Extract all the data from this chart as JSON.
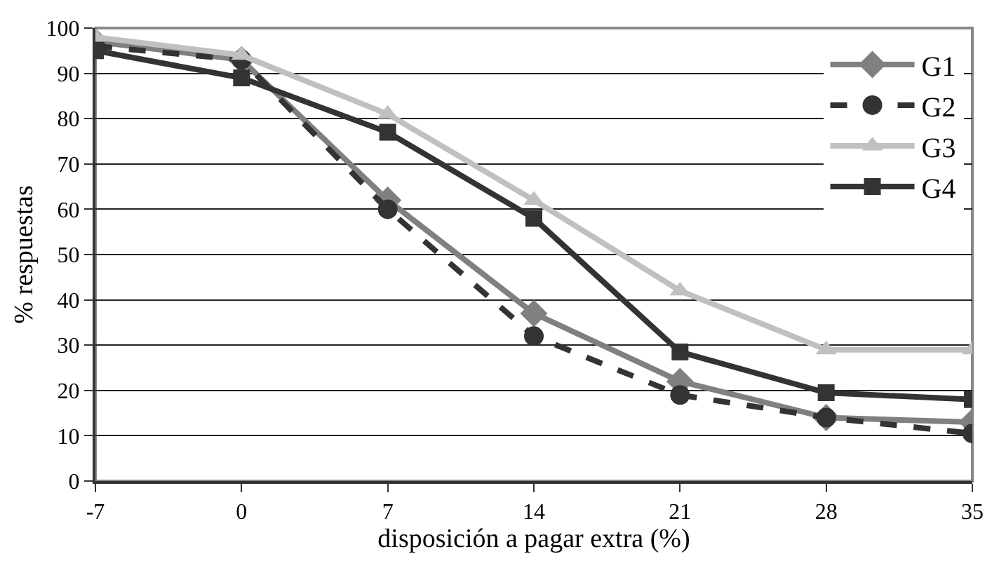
{
  "chart_data": {
    "type": "line",
    "xlabel": "disposición a pagar extra (%)",
    "ylabel": "% respuestas",
    "x": [
      -7,
      0,
      7,
      14,
      21,
      28,
      35
    ],
    "xlim": [
      -7,
      35
    ],
    "xticks": [
      -7,
      0,
      7,
      14,
      21,
      28,
      35
    ],
    "ylim": [
      0,
      100
    ],
    "yticks": [
      0,
      10,
      20,
      30,
      40,
      50,
      60,
      70,
      80,
      90,
      100
    ],
    "grid": "y",
    "legend": "top right",
    "series": [
      {
        "name": "G1",
        "color": "#808080",
        "marker": "diamond",
        "line_style": "solid",
        "values": [
          97,
          93,
          62,
          37,
          22,
          14,
          13
        ]
      },
      {
        "name": "G2",
        "color": "#333333",
        "marker": "circle",
        "line_style": "dashed",
        "values": [
          96,
          93,
          60,
          32,
          19,
          14,
          10.5
        ]
      },
      {
        "name": "G3",
        "color": "#c0c0c0",
        "marker": "triangle",
        "line_style": "solid",
        "values": [
          98,
          94,
          81,
          62,
          42,
          29,
          29
        ]
      },
      {
        "name": "G4",
        "color": "#333333",
        "marker": "square",
        "line_style": "solid",
        "values": [
          95,
          89,
          77,
          58,
          28.5,
          19.5,
          18
        ]
      }
    ]
  }
}
